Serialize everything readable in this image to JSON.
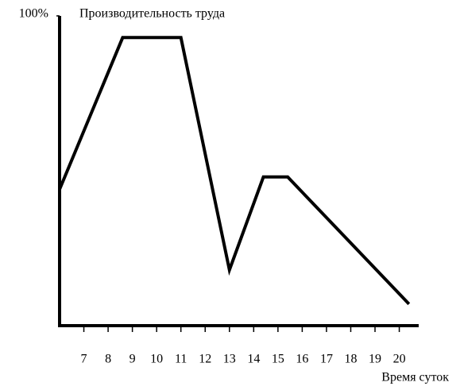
{
  "chart_data": {
    "type": "line",
    "title": "Производительность труда",
    "x_label": "Время суток",
    "x": [
      6,
      8.6,
      11,
      13,
      14.4,
      15.4,
      20.4
    ],
    "values": [
      44,
      93,
      93,
      18,
      48,
      48,
      7
    ],
    "color": "#000000",
    "xlim": [
      6,
      20.8
    ],
    "xticks": [
      7,
      8,
      9,
      10,
      11,
      12,
      13,
      14,
      15,
      16,
      17,
      18,
      19,
      20
    ],
    "ylim": [
      0,
      100
    ],
    "yticks": [
      {
        "value": 100,
        "label": "100%"
      }
    ]
  }
}
